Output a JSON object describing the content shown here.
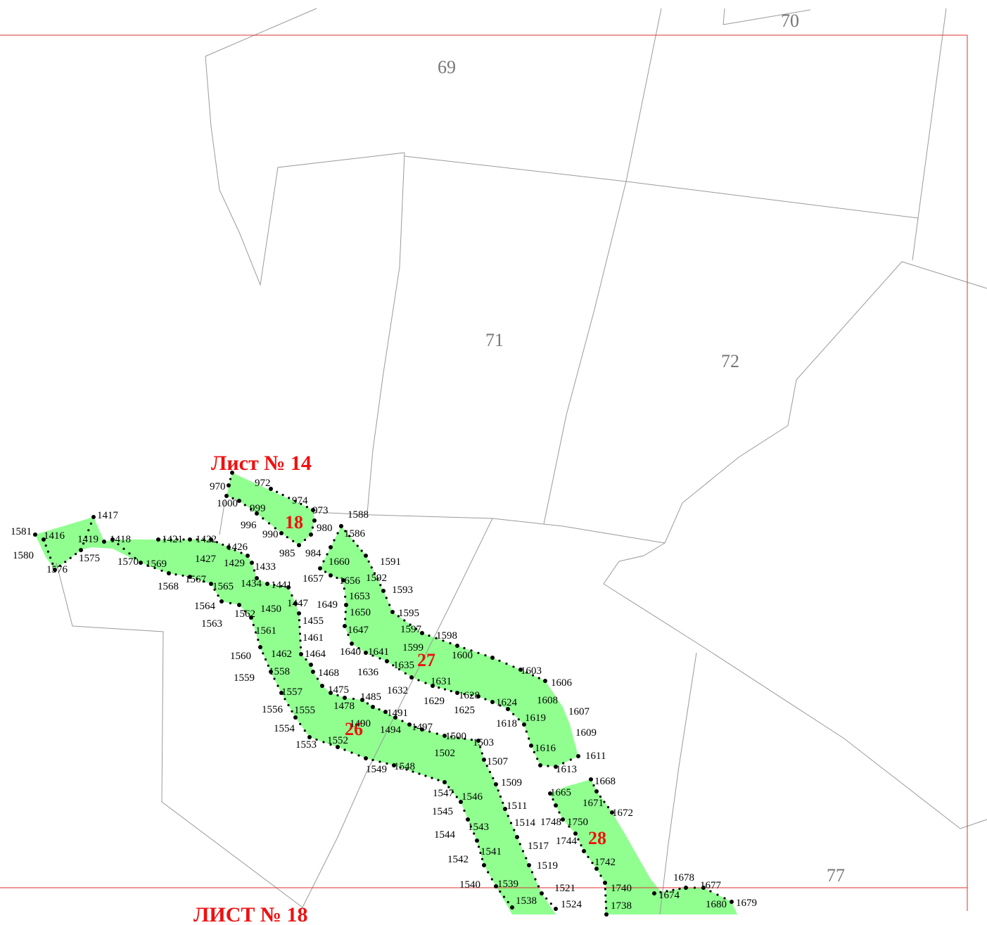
{
  "sheets": {
    "top": "Лист № 14",
    "bottom": "ЛИСТ № 18"
  },
  "colors": {
    "zone_fill": "#90ff90",
    "frame": "#e03030",
    "parcel_border": "#9a9a9a",
    "zone_label": "#ee1111",
    "parcel_label": "#777777"
  },
  "parcels": [
    "69",
    "70",
    "71",
    "72",
    "77"
  ],
  "zones": [
    "18",
    "26",
    "27",
    "28"
  ],
  "points": [
    "1581",
    "1416",
    "1417",
    "1419",
    "1418",
    "1421",
    "1422",
    "1426",
    "1427",
    "1429",
    "1433",
    "1580",
    "1575",
    "1576",
    "1570",
    "1569",
    "1568",
    "1567",
    "1565",
    "1434",
    "1441",
    "1564",
    "1447",
    "1450",
    "1563",
    "1562",
    "1455",
    "1561",
    "1461",
    "1462",
    "1464",
    "1560",
    "1558",
    "1559",
    "1468",
    "1557",
    "1475",
    "1485",
    "1478",
    "1556",
    "1555",
    "1554",
    "1553",
    "1552",
    "1490",
    "1491",
    "1494",
    "1497",
    "1500",
    "1503",
    "1502",
    "1507",
    "1549",
    "1548",
    "1509",
    "1547",
    "1546",
    "1511",
    "1545",
    "1543",
    "1514",
    "1544",
    "1517",
    "1542",
    "1541",
    "1519",
    "1540",
    "1539",
    "1521",
    "1538",
    "1524",
    "972",
    "970",
    "1000",
    "999",
    "974",
    "973",
    "996",
    "990",
    "980",
    "985",
    "984",
    "1588",
    "1586",
    "1660",
    "1591",
    "1657",
    "1656",
    "1592",
    "1653",
    "1593",
    "1649",
    "1650",
    "1595",
    "1647",
    "1597",
    "1598",
    "1599",
    "1600",
    "1640",
    "1641",
    "1635",
    "1636",
    "1603",
    "1606",
    "1631",
    "1632",
    "1629",
    "1628",
    "1624",
    "1625",
    "1608",
    "1607",
    "1618",
    "1619",
    "1609",
    "1616",
    "1611",
    "1613",
    "1668",
    "1665",
    "1671",
    "1672",
    "1748",
    "1750",
    "1744",
    "1742",
    "1740",
    "1738",
    "1674",
    "1678",
    "1677",
    "1680",
    "1679"
  ]
}
